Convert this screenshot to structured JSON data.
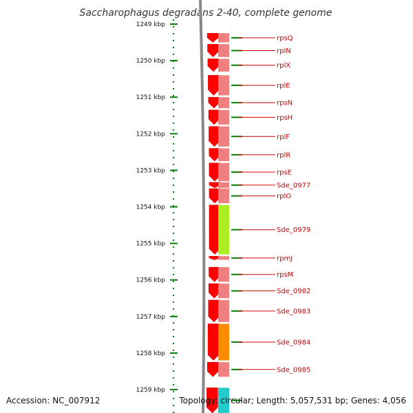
{
  "title": "Saccharophagus degradans 2-40, complete genome",
  "footer": {
    "accession": "Accession: NC_007912",
    "summary": "Topology: circular; Length: 5,057,531 bp; Genes: 4,056"
  },
  "ruler": {
    "unit": "kbp",
    "start_kbp": 1249,
    "end_kbp": 1259,
    "ticks": [
      "1249 kbp",
      "1250 kbp",
      "1251 kbp",
      "1252 kbp",
      "1253 kbp",
      "1254 kbp",
      "1255 kbp",
      "1256 kbp",
      "1257 kbp",
      "1258 kbp",
      "1259 kbp"
    ]
  },
  "colors": {
    "gene_arrow": "#ff0000",
    "band_default": "#f08080",
    "band_green": "#aaee22",
    "band_orange": "#ff8c00",
    "band_cyan": "#22cccc",
    "label": "#cc0000",
    "tick": "#008000",
    "backbone": "#888888"
  },
  "genes": [
    {
      "name": "rpsQ",
      "start_kbp": 1249.25,
      "end_kbp": 1249.5,
      "band": "band_default"
    },
    {
      "name": "rplN",
      "start_kbp": 1249.55,
      "end_kbp": 1249.9,
      "band": "band_default"
    },
    {
      "name": "rplX",
      "start_kbp": 1249.95,
      "end_kbp": 1250.3,
      "band": "band_default"
    },
    {
      "name": "rplE",
      "start_kbp": 1250.4,
      "end_kbp": 1250.95,
      "band": "band_default"
    },
    {
      "name": "rpsN",
      "start_kbp": 1251.0,
      "end_kbp": 1251.3,
      "band": "band_default"
    },
    {
      "name": "rpsH",
      "start_kbp": 1251.35,
      "end_kbp": 1251.75,
      "band": "band_default"
    },
    {
      "name": "rplF",
      "start_kbp": 1251.8,
      "end_kbp": 1252.35,
      "band": "band_default"
    },
    {
      "name": "rplR",
      "start_kbp": 1252.4,
      "end_kbp": 1252.75,
      "band": "band_default"
    },
    {
      "name": "rpsE",
      "start_kbp": 1252.8,
      "end_kbp": 1253.3,
      "band": "band_default"
    },
    {
      "name": "Sde_0977",
      "start_kbp": 1253.33,
      "end_kbp": 1253.48,
      "band": "band_default"
    },
    {
      "name": "rplO",
      "start_kbp": 1253.5,
      "end_kbp": 1253.9,
      "band": "band_default"
    },
    {
      "name": "Sde_0979",
      "start_kbp": 1253.95,
      "end_kbp": 1255.3,
      "band": "band_green"
    },
    {
      "name": "rpmJ",
      "start_kbp": 1255.35,
      "end_kbp": 1255.45,
      "band": "band_default"
    },
    {
      "name": "rpsM",
      "start_kbp": 1255.65,
      "end_kbp": 1256.05,
      "band": "band_default"
    },
    {
      "name": "Sde_0982",
      "start_kbp": 1256.1,
      "end_kbp": 1256.5,
      "band": "band_default"
    },
    {
      "name": "Sde_0983",
      "start_kbp": 1256.55,
      "end_kbp": 1257.15,
      "band": "band_default"
    },
    {
      "name": "Sde_0984",
      "start_kbp": 1257.2,
      "end_kbp": 1258.2,
      "band": "band_orange"
    },
    {
      "name": "Sde_0985",
      "start_kbp": 1258.25,
      "end_kbp": 1258.65,
      "band": "band_default"
    },
    {
      "name": "",
      "start_kbp": 1258.95,
      "end_kbp": 1259.8,
      "band": "band_cyan"
    }
  ]
}
